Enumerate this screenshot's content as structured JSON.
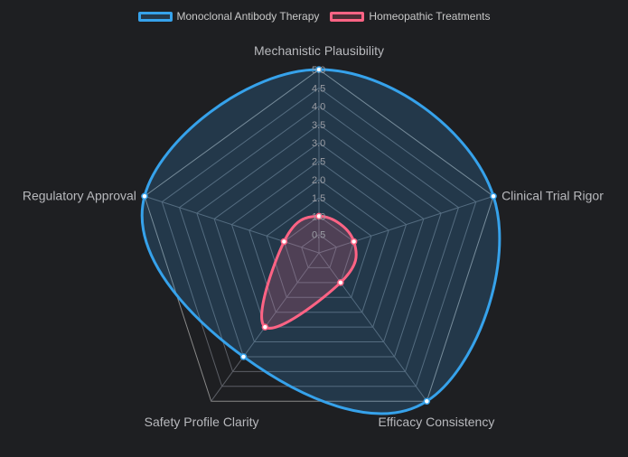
{
  "chart_data": {
    "type": "radar",
    "axes": [
      "Mechanistic Plausibility",
      "Clinical Trial Rigor",
      "Efficacy Consistency",
      "Safety Profile Clarity",
      "Regulatory Approval"
    ],
    "ticks": [
      "0.5",
      "1.0",
      "1.5",
      "2.0",
      "2.5",
      "3.0",
      "3.5",
      "4.0",
      "4.5",
      "5.0"
    ],
    "rmin": 0,
    "rmax": 5,
    "grid": true,
    "legend_position": "top",
    "series": [
      {
        "name": "Monoclonal Antibody Therapy",
        "values": [
          5.0,
          5.0,
          5.0,
          3.5,
          5.0
        ],
        "color": "#36a2eb",
        "fill": "rgba(54,162,235,0.2)"
      },
      {
        "name": "Homeopathic Treatments",
        "values": [
          1.0,
          1.0,
          1.0,
          2.5,
          1.0
        ],
        "color": "#ff6384",
        "fill": "rgba(255,99,132,0.2)"
      }
    ]
  }
}
